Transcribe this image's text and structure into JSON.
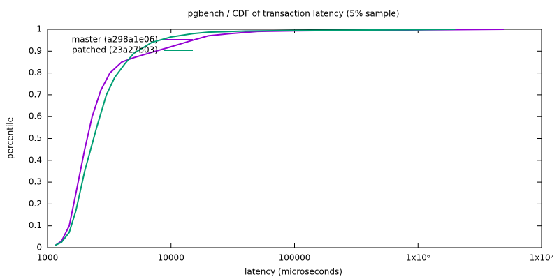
{
  "chart_data": {
    "type": "line",
    "title": "pgbench / CDF of transaction latency (5% sample)",
    "x_label": "latency (microseconds)",
    "y_label": "percentile",
    "xscale": "log",
    "xlim": [
      1000,
      10000000
    ],
    "xticks": [
      1000,
      10000,
      100000,
      {
        "value": 1000000,
        "label": "1x10⁶"
      },
      {
        "value": 10000000,
        "label": "1x10⁷"
      }
    ],
    "ylim": [
      0,
      1
    ],
    "yticks": [
      0,
      0.1,
      0.2,
      0.3,
      0.4,
      0.5,
      0.6,
      0.7,
      0.8,
      0.9,
      1
    ],
    "legend": "top-left",
    "series": [
      {
        "name": "master (a298a1e06)",
        "color": "#9400d3",
        "x": [
          1150,
          1300,
          1500,
          1700,
          2000,
          2300,
          2700,
          3200,
          4000,
          5000,
          7000,
          10000,
          15000,
          20000,
          30000,
          50000,
          100000,
          1000000,
          5000000
        ],
        "values": [
          0.01,
          0.03,
          0.1,
          0.25,
          0.45,
          0.6,
          0.72,
          0.8,
          0.85,
          0.87,
          0.895,
          0.92,
          0.95,
          0.97,
          0.98,
          0.99,
          0.993,
          0.997,
          1
        ]
      },
      {
        "name": "patched (23a27b03)",
        "color": "#009e73",
        "x": [
          1150,
          1300,
          1500,
          1700,
          2000,
          2500,
          3000,
          3500,
          4200,
          5000,
          7000,
          10000,
          15000,
          20000,
          40000,
          100000,
          1000000,
          2000000
        ],
        "values": [
          0.01,
          0.025,
          0.07,
          0.17,
          0.35,
          0.55,
          0.7,
          0.78,
          0.84,
          0.89,
          0.94,
          0.965,
          0.98,
          0.987,
          0.992,
          0.995,
          0.998,
          1
        ]
      }
    ]
  }
}
